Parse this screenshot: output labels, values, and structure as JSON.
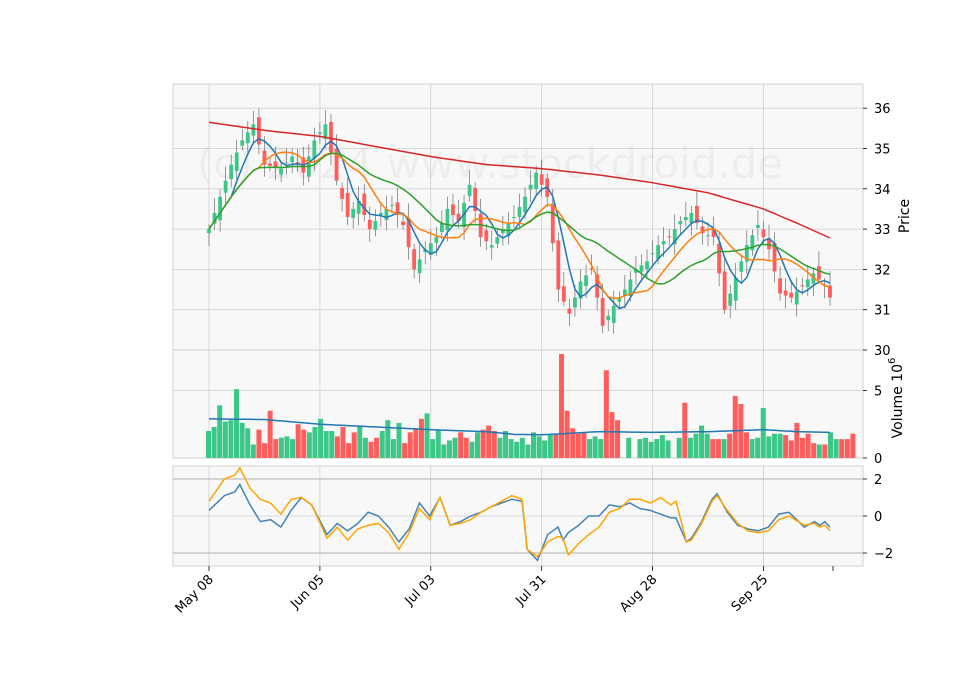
{
  "chart_data": {
    "type": "candlestick",
    "watermark": "(c) 2024 www.stockdroid.de",
    "x_tick_labels": [
      "May 08",
      "Jun 05",
      "Jul 03",
      "Jul 31",
      "Aug 28",
      "Sep 25"
    ],
    "price_panel": {
      "ylabel": "Price",
      "ylim": [
        30,
        36.6
      ],
      "yticks": [
        "30",
        "31",
        "32",
        "33",
        "34",
        "35",
        "36"
      ],
      "grid": true,
      "close_anchors": [
        [
          0,
          33.0
        ],
        [
          2,
          33.8
        ],
        [
          4,
          34.6
        ],
        [
          6,
          35.2
        ],
        [
          8,
          35.6
        ],
        [
          10,
          34.6
        ],
        [
          13,
          34.5
        ],
        [
          15,
          34.8
        ],
        [
          17,
          34.4
        ],
        [
          19,
          35.2
        ],
        [
          21,
          35.6
        ],
        [
          23,
          34.2
        ],
        [
          25,
          33.3
        ],
        [
          27,
          33.7
        ],
        [
          29,
          33.0
        ],
        [
          31,
          33.4
        ],
        [
          33,
          33.6
        ],
        [
          35,
          33.1
        ],
        [
          37,
          32.0
        ],
        [
          39,
          32.5
        ],
        [
          41,
          32.8
        ],
        [
          43,
          33.5
        ],
        [
          45,
          33.2
        ],
        [
          47,
          34.1
        ],
        [
          49,
          32.8
        ],
        [
          51,
          32.6
        ],
        [
          53,
          33.0
        ],
        [
          55,
          33.3
        ],
        [
          57,
          33.8
        ],
        [
          59,
          34.4
        ],
        [
          61,
          33.8
        ],
        [
          63,
          31.5
        ],
        [
          65,
          30.9
        ],
        [
          67,
          31.7
        ],
        [
          69,
          32.0
        ],
        [
          71,
          30.6
        ],
        [
          73,
          31.1
        ],
        [
          75,
          31.5
        ],
        [
          77,
          32.0
        ],
        [
          79,
          32.2
        ],
        [
          81,
          32.6
        ],
        [
          83,
          32.8
        ],
        [
          85,
          33.2
        ],
        [
          87,
          33.4
        ],
        [
          89,
          32.9
        ],
        [
          91,
          32.8
        ],
        [
          93,
          31.0
        ],
        [
          95,
          31.8
        ],
        [
          97,
          32.6
        ],
        [
          99,
          33.1
        ],
        [
          101,
          32.5
        ],
        [
          103,
          31.4
        ],
        [
          105,
          31.3
        ],
        [
          107,
          31.6
        ],
        [
          109,
          31.9
        ],
        [
          111,
          31.6
        ],
        [
          112,
          31.3
        ]
      ],
      "sma_series": [
        {
          "color": "#1f77b4",
          "window": 5
        },
        {
          "color": "#ff7f0e",
          "window": 10
        },
        {
          "color": "#2ca02c",
          "window": 20
        },
        {
          "color": "#d62728",
          "anchors": [
            [
              0,
              35.65
            ],
            [
              10,
              35.45
            ],
            [
              20,
              35.3
            ],
            [
              30,
              35.05
            ],
            [
              40,
              34.8
            ],
            [
              50,
              34.6
            ],
            [
              60,
              34.5
            ],
            [
              70,
              34.35
            ],
            [
              80,
              34.15
            ],
            [
              90,
              33.9
            ],
            [
              100,
              33.5
            ],
            [
              106,
              33.15
            ],
            [
              112,
              32.78
            ]
          ]
        }
      ]
    },
    "volume_panel": {
      "ylabel": "Volume",
      "multiplier": "10",
      "multiplier_exp": "6",
      "ylim": [
        0,
        8.0
      ],
      "yticks": [
        "0",
        "5"
      ],
      "values": [
        2.0,
        2.3,
        3.9,
        2.7,
        2.8,
        5.1,
        2.6,
        2.2,
        1.0,
        2.1,
        1.1,
        3.5,
        1.4,
        1.5,
        1.6,
        1.4,
        2.5,
        2.1,
        1.9,
        2.3,
        2.9,
        2.0,
        2.0,
        1.6,
        2.3,
        1.1,
        1.9,
        2.4,
        1.5,
        1.2,
        1.5,
        2.0,
        2.8,
        1.4,
        2.6,
        1.1,
        1.9,
        2.2,
        2.9,
        3.3,
        1.4,
        2.1,
        1.0,
        1.3,
        1.5,
        1.9,
        1.5,
        1.2,
        1.9,
        2.1,
        2.4,
        2.0,
        1.5,
        2.0,
        1.4,
        1.2,
        1.5,
        1.0,
        1.9,
        1.6,
        1.3,
        1.7,
        1.8,
        7.7,
        3.5,
        2.2,
        1.8,
        1.9,
        1.4,
        1.6,
        1.4,
        6.5,
        3.4,
        2.8,
        0,
        1.5,
        0,
        1.4,
        1.5,
        1.2,
        1.4,
        1.7,
        1.3,
        0,
        1.5,
        4.1,
        1.5,
        1.8,
        2.4,
        1.8,
        1.4,
        1.4,
        1.4,
        1.8,
        4.6,
        4.0,
        1.9,
        1.4,
        1.5,
        3.7,
        1.6,
        1.8,
        1.8,
        1.7,
        1.3,
        2.6,
        1.5,
        1.8,
        1.1,
        1.0,
        1.0,
        1.9,
        1.4,
        1.4,
        1.4,
        1.8
      ],
      "avg_anchors": [
        [
          0,
          2.9
        ],
        [
          10,
          2.85
        ],
        [
          20,
          2.5
        ],
        [
          30,
          2.3
        ],
        [
          40,
          2.1
        ],
        [
          50,
          1.95
        ],
        [
          55,
          1.75
        ],
        [
          60,
          1.72
        ],
        [
          64,
          1.8
        ],
        [
          70,
          1.95
        ],
        [
          80,
          1.9
        ],
        [
          90,
          1.95
        ],
        [
          100,
          2.1
        ],
        [
          106,
          1.95
        ],
        [
          112,
          1.9
        ]
      ]
    },
    "indicator_panel": {
      "ylim": [
        -2.7,
        2.7
      ],
      "yticks": [
        "2",
        "0",
        "−2"
      ],
      "reference_lines": [
        2,
        -2
      ],
      "series": [
        {
          "color": "#4682b4",
          "anchors": [
            [
              0,
              0.3
            ],
            [
              3,
              1.1
            ],
            [
              5,
              1.3
            ],
            [
              6,
              1.7
            ],
            [
              8,
              0.6
            ],
            [
              10,
              -0.3
            ],
            [
              12,
              -0.2
            ],
            [
              14,
              -0.6
            ],
            [
              16,
              0.3
            ],
            [
              18,
              1.0
            ],
            [
              20,
              0.6
            ],
            [
              23,
              -1.0
            ],
            [
              25,
              -0.4
            ],
            [
              27,
              -0.8
            ],
            [
              29,
              -0.4
            ],
            [
              31,
              0.2
            ],
            [
              33,
              0.0
            ],
            [
              35,
              -0.6
            ],
            [
              37,
              -1.4
            ],
            [
              39,
              -0.7
            ],
            [
              41,
              0.7
            ],
            [
              43,
              0.0
            ],
            [
              45,
              1.0
            ],
            [
              47,
              -0.5
            ],
            [
              49,
              -0.3
            ],
            [
              51,
              0.0
            ],
            [
              53,
              0.2
            ],
            [
              55,
              0.5
            ],
            [
              57,
              0.7
            ],
            [
              59,
              0.9
            ],
            [
              61,
              0.8
            ],
            [
              62,
              -1.8
            ],
            [
              64,
              -2.4
            ],
            [
              66,
              -1.0
            ],
            [
              68,
              -0.6
            ],
            [
              69,
              -1.3
            ],
            [
              70,
              -0.9
            ],
            [
              72,
              -0.5
            ],
            [
              74,
              0.0
            ],
            [
              76,
              0.0
            ],
            [
              78,
              0.6
            ],
            [
              80,
              0.5
            ],
            [
              82,
              0.7
            ],
            [
              84,
              0.4
            ],
            [
              86,
              0.3
            ],
            [
              88,
              0.1
            ],
            [
              90,
              -0.1
            ],
            [
              91,
              -0.1
            ],
            [
              93,
              -1.4
            ],
            [
              94,
              -1.2
            ],
            [
              96,
              -0.3
            ],
            [
              98,
              0.9
            ],
            [
              99,
              1.2
            ],
            [
              101,
              0.2
            ],
            [
              103,
              -0.5
            ],
            [
              105,
              -0.7
            ],
            [
              107,
              -0.8
            ],
            [
              109,
              -0.6
            ],
            [
              111,
              0.1
            ],
            [
              113,
              0.2
            ],
            [
              116,
              -0.6
            ],
            [
              118,
              -0.3
            ],
            [
              119,
              -0.5
            ],
            [
              120,
              -0.3
            ],
            [
              121,
              -0.6
            ]
          ]
        },
        {
          "color": "#ffa500",
          "anchors": [
            [
              0,
              0.8
            ],
            [
              2,
              1.6
            ],
            [
              3,
              2.0
            ],
            [
              5,
              2.2
            ],
            [
              6,
              2.6
            ],
            [
              8,
              1.5
            ],
            [
              10,
              0.9
            ],
            [
              12,
              0.7
            ],
            [
              14,
              0.1
            ],
            [
              16,
              0.9
            ],
            [
              18,
              1.0
            ],
            [
              20,
              0.6
            ],
            [
              23,
              -1.2
            ],
            [
              25,
              -0.6
            ],
            [
              27,
              -1.3
            ],
            [
              29,
              -0.7
            ],
            [
              31,
              -0.5
            ],
            [
              33,
              -0.4
            ],
            [
              35,
              -0.9
            ],
            [
              37,
              -1.8
            ],
            [
              39,
              -0.9
            ],
            [
              41,
              0.4
            ],
            [
              43,
              -0.2
            ],
            [
              45,
              1.0
            ],
            [
              47,
              -0.5
            ],
            [
              49,
              -0.4
            ],
            [
              51,
              -0.2
            ],
            [
              53,
              0.2
            ],
            [
              55,
              0.5
            ],
            [
              57,
              0.8
            ],
            [
              59,
              1.1
            ],
            [
              61,
              0.9
            ],
            [
              62,
              -1.8
            ],
            [
              64,
              -2.2
            ],
            [
              66,
              -1.4
            ],
            [
              68,
              -1.1
            ],
            [
              69,
              -1.2
            ],
            [
              70,
              -2.1
            ],
            [
              72,
              -1.5
            ],
            [
              74,
              -1.0
            ],
            [
              76,
              -0.6
            ],
            [
              78,
              0.2
            ],
            [
              80,
              0.4
            ],
            [
              82,
              0.9
            ],
            [
              84,
              0.9
            ],
            [
              86,
              0.7
            ],
            [
              88,
              1.0
            ],
            [
              90,
              0.6
            ],
            [
              91,
              0.8
            ],
            [
              93,
              -1.4
            ],
            [
              94,
              -1.3
            ],
            [
              96,
              -0.4
            ],
            [
              98,
              0.8
            ],
            [
              99,
              1.1
            ],
            [
              101,
              0.3
            ],
            [
              103,
              -0.4
            ],
            [
              105,
              -0.8
            ],
            [
              107,
              -0.9
            ],
            [
              109,
              -0.8
            ],
            [
              111,
              -0.2
            ],
            [
              113,
              0.0
            ],
            [
              116,
              -0.5
            ],
            [
              118,
              -0.4
            ],
            [
              119,
              -0.6
            ],
            [
              120,
              -0.5
            ],
            [
              121,
              -0.8
            ]
          ]
        }
      ]
    }
  }
}
